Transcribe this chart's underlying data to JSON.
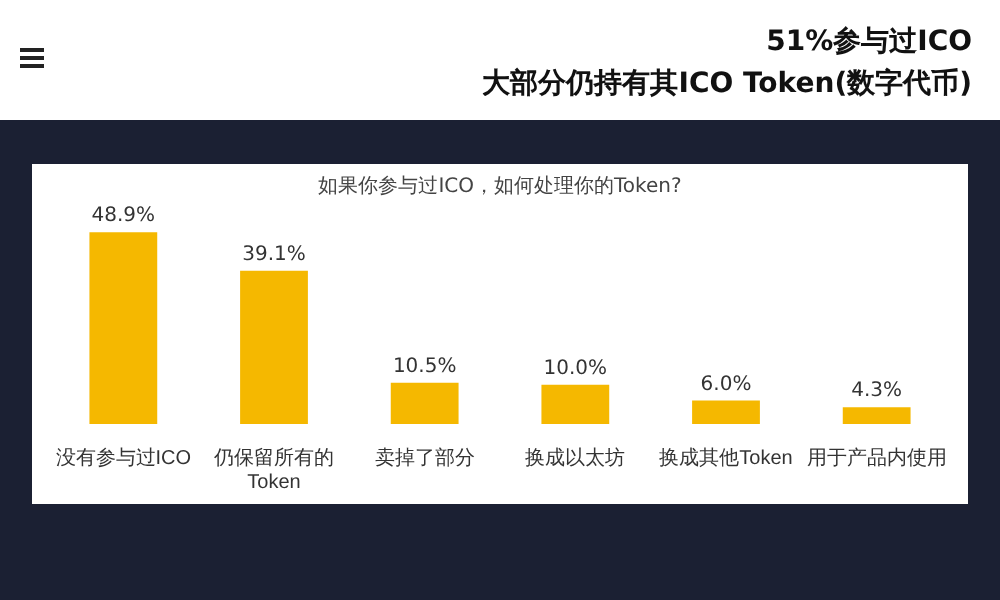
{
  "chart_data": {
    "type": "bar",
    "title": "51%参与过ICO",
    "subtitle": "大部分仍持有其ICO Token(数字代币)",
    "annotations": [
      "如果你参与过ICO，如何处理你的Token?"
    ],
    "categories": [
      "没有参与过ICO",
      "仍保留所有的Token",
      "卖掉了部分",
      "换成以太坊",
      "换成其他Token",
      "用于产品内使用"
    ],
    "values": [
      48.9,
      39.1,
      10.5,
      10.0,
      6.0,
      4.3
    ],
    "value_labels": [
      "48.9%",
      "39.1%",
      "10.5%",
      "10.0%",
      "6.0%",
      "4.3%"
    ],
    "color": "#f5b800",
    "tick_labels": "x"
  }
}
